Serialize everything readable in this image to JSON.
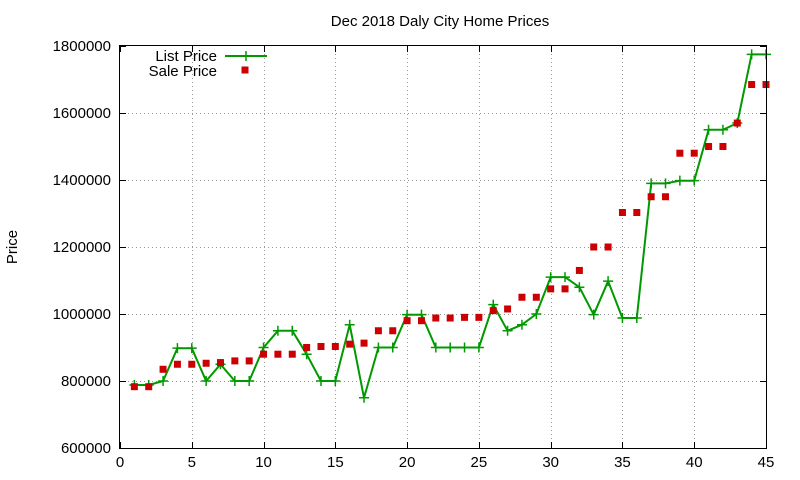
{
  "chart_data": {
    "type": "line",
    "title": "Dec 2018 Daly City Home Prices",
    "xlabel": "",
    "ylabel": "Price",
    "xlim": [
      0,
      45
    ],
    "ylim": [
      600000,
      1800000
    ],
    "x_ticks": [
      0,
      5,
      10,
      15,
      20,
      25,
      30,
      35,
      40,
      45
    ],
    "y_ticks": [
      600000,
      800000,
      1000000,
      1200000,
      1400000,
      1600000,
      1800000
    ],
    "grid": true,
    "legend_position": "top-left",
    "x": [
      1,
      2,
      3,
      4,
      5,
      6,
      7,
      8,
      9,
      10,
      11,
      12,
      13,
      14,
      15,
      16,
      17,
      18,
      19,
      20,
      21,
      22,
      23,
      24,
      25,
      26,
      27,
      28,
      29,
      30,
      31,
      32,
      33,
      34,
      35,
      36,
      37,
      38,
      39,
      40,
      41,
      42,
      43,
      44,
      45
    ],
    "series": [
      {
        "name": "List Price",
        "style": "line+cross",
        "color": "#009900",
        "values": [
          788000,
          788000,
          800000,
          898000,
          898000,
          800000,
          850000,
          800000,
          800000,
          900000,
          950000,
          950000,
          880000,
          800000,
          800000,
          968000,
          750000,
          900000,
          900000,
          998000,
          998000,
          900000,
          900000,
          900000,
          900000,
          1028000,
          950000,
          968000,
          1000000,
          1110000,
          1110000,
          1080000,
          998000,
          1098000,
          988000,
          988000,
          1390000,
          1390000,
          1398000,
          1398000,
          1550000,
          1550000,
          1570000,
          1775000,
          1775000
        ]
      },
      {
        "name": "Sale Price",
        "style": "square-markers",
        "color": "#cc0000",
        "values": [
          783000,
          783000,
          835000,
          850000,
          850000,
          853000,
          855000,
          860000,
          860000,
          880000,
          880000,
          880000,
          900000,
          903000,
          903000,
          910000,
          913000,
          950000,
          950000,
          980000,
          980000,
          988000,
          988000,
          990000,
          990000,
          1010000,
          1015000,
          1050000,
          1050000,
          1075000,
          1075000,
          1130000,
          1200000,
          1200000,
          1303000,
          1303000,
          1350000,
          1350000,
          1480000,
          1480000,
          1500000,
          1500000,
          1570000,
          1685000,
          1685000
        ]
      }
    ]
  }
}
